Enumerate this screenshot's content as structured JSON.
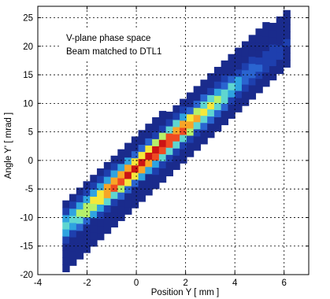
{
  "chart_data": {
    "type": "heatmap",
    "xlabel": "Position  Y [ mm ]",
    "ylabel": "Angle  Y' [ mrad ]",
    "xlim": [
      -4,
      7
    ],
    "ylim": [
      -20,
      27
    ],
    "x_ticks": [
      -4,
      -2,
      0,
      2,
      4,
      6
    ],
    "y_ticks": [
      -20,
      -15,
      -10,
      -5,
      0,
      5,
      10,
      15,
      20,
      25
    ],
    "grid": true,
    "grid_style": "dotted",
    "annotation": {
      "lines": [
        "V-plane phase space",
        "Beam matched to DTL1"
      ],
      "placement": "top-left"
    },
    "band": {
      "y_min_start": -19.5,
      "y_max_start": -7,
      "y_min_slope": 4.0,
      "y_max_slope": 3.7,
      "x_start": -3,
      "x_end": 6.1,
      "centerline_intercept": -1.2,
      "centerline_slope": 3.55,
      "peak_x": 0.5
    },
    "colormap": [
      "#1a2b8c",
      "#1e3fae",
      "#2a64d0",
      "#2fa3e0",
      "#5fd6d0",
      "#b5f06a",
      "#f6e83a",
      "#f7a527",
      "#ef4a21",
      "#cc1414"
    ],
    "colors": {
      "background_fill": "#1a2b8c",
      "axis": "#000000",
      "grid": "#000000",
      "annotation_bg": "#ffffff"
    }
  }
}
